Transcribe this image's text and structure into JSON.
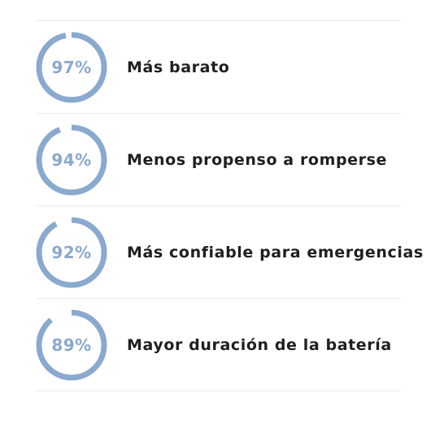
{
  "colors": {
    "ring": "#89a9cf",
    "percent_text": "#89a9cf",
    "label_text": "#1f1f1f",
    "divider": "#ececec"
  },
  "stats": [
    {
      "percent_label": "97%",
      "value": 97,
      "label": "Más barato"
    },
    {
      "percent_label": "94%",
      "value": 94,
      "label": "Menos propenso a romperse"
    },
    {
      "percent_label": "92%",
      "value": 92,
      "label": "Más confiable para emergencias"
    },
    {
      "percent_label": "89%",
      "value": 89,
      "label": "Mayor duración de la batería"
    }
  ]
}
